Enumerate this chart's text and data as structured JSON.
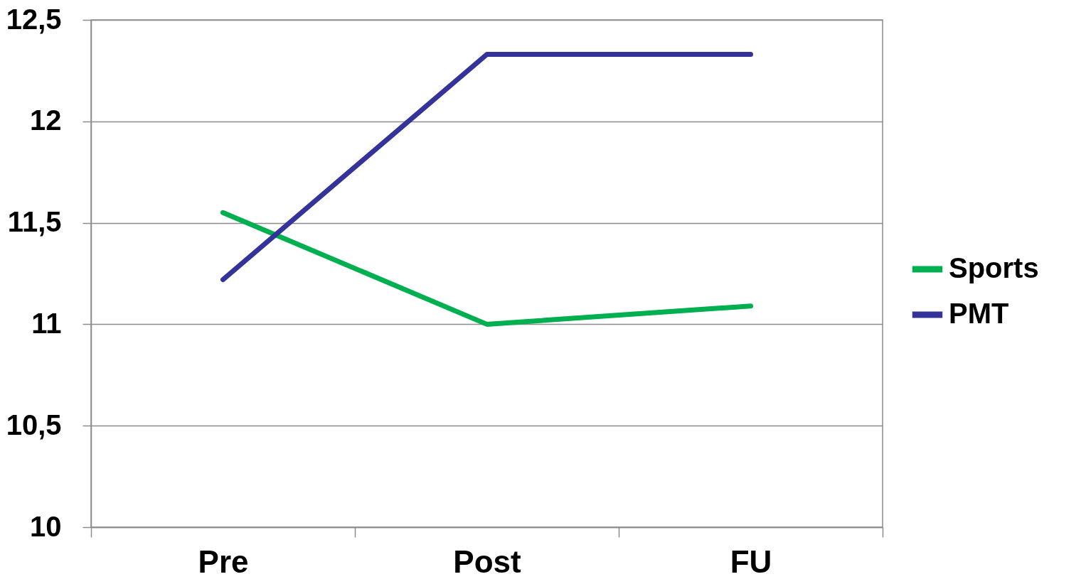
{
  "chart_data": {
    "type": "line",
    "categories": [
      "Pre",
      "Post",
      "FU"
    ],
    "series": [
      {
        "name": "Sports",
        "color": "#00b050",
        "values": [
          11.55,
          11.0,
          11.09
        ]
      },
      {
        "name": "PMT",
        "color": "#333399",
        "values": [
          11.22,
          12.33,
          12.33
        ]
      }
    ],
    "ylim": [
      10,
      12.5
    ],
    "yticks": [
      10,
      {
        "value": 10.5,
        "label": "10,5"
      },
      11,
      {
        "value": 11.5,
        "label": "11,5"
      },
      12,
      {
        "value": 12.5,
        "label": "12,5"
      }
    ],
    "grid": "y",
    "legend": "right",
    "marker": "none",
    "line_style": "solid"
  }
}
